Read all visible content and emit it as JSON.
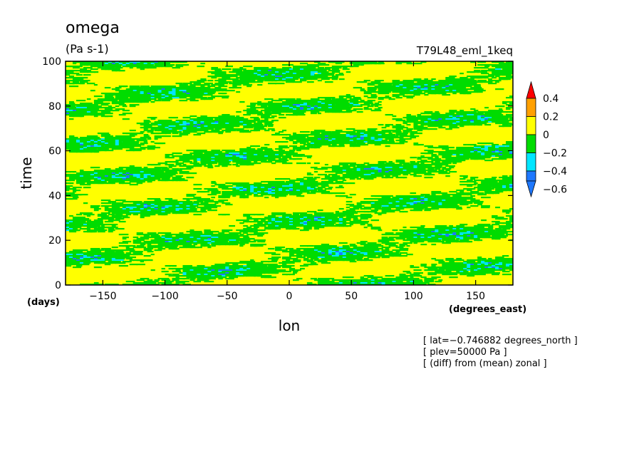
{
  "chart_data": {
    "type": "heatmap",
    "title": "omega",
    "units": "(Pa s-1)",
    "experiment": "T79L48_eml_1keq",
    "xlabel": "lon",
    "x_units": "(degrees_east)",
    "ylabel": "time",
    "y_units": "(days)",
    "xlim": [
      -180,
      180
    ],
    "ylim": [
      0,
      100
    ],
    "x_ticks": [
      -150,
      -100,
      -50,
      0,
      50,
      100,
      150
    ],
    "y_ticks": [
      0,
      20,
      40,
      60,
      80,
      100
    ],
    "levels": [
      -0.6,
      -0.4,
      -0.2,
      0,
      0.2,
      0.4
    ],
    "level_labels": [
      "0.4",
      "0.2",
      "0",
      "−0.2",
      "−0.4",
      "−0.6"
    ],
    "x_tick_labels": [
      "−150",
      "−100",
      "−50",
      "0",
      "50",
      "100",
      "150"
    ],
    "y_tick_labels": [
      "0",
      "20",
      "40",
      "60",
      "80",
      "100"
    ],
    "bin_colors": [
      "#1e78ff",
      "#00e6ff",
      "#00dc00",
      "#ffff00",
      "#ffa000",
      "#ff0000"
    ],
    "dominant_pattern": "mostly values between -0.2 and 0.2 (green/yellow), with scattered -0.4 to -0.2 (cyan) and rare -0.6 to -0.4 (blue) streaks tilted westward with time",
    "annotations": [
      "[ lat=−0.746882 degrees_north ]",
      "[ plev=50000 Pa ]",
      "[ (diff) from (mean) zonal ]"
    ]
  }
}
